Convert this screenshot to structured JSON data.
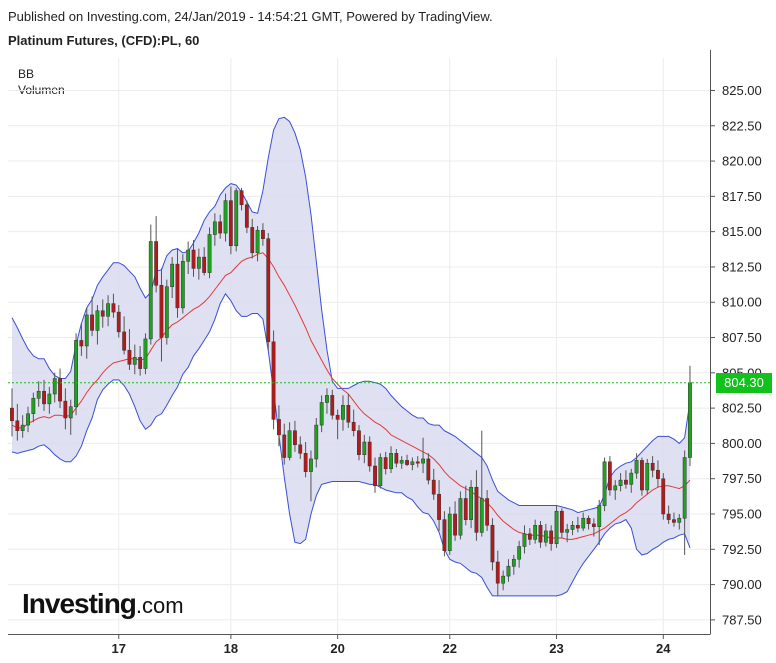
{
  "header": {
    "published": "Published on Investing.com, 24/Jan/2019 - 14:54:21 GMT, Powered by TradingView.",
    "symbol": "Platinum Futures, (CFD):PL, 60"
  },
  "indicators": [
    "BB",
    "Volumen"
  ],
  "logo": {
    "main": "Investing",
    "suffix": ".com"
  },
  "colors": {
    "up": "#1fa31f",
    "down": "#b31b1b",
    "band": "#3b4fd6",
    "band_fill": "#d9daf0",
    "basis": "#e23a3a",
    "last_line": "#15c215",
    "last_bg": "#10c21a"
  },
  "chart_data": {
    "type": "candlestick",
    "title": "Platinum Futures, (CFD):PL, 60",
    "ylim": [
      786.5,
      827.3
    ],
    "y_ticks": [
      787.5,
      790.0,
      792.5,
      795.0,
      797.5,
      800.0,
      802.5,
      805.0,
      807.5,
      810.0,
      812.5,
      815.0,
      817.5,
      820.0,
      822.5,
      825.0
    ],
    "y_tick_labels": [
      "787.50",
      "790.00",
      "792.50",
      "795.00",
      "797.50",
      "800.00",
      "802.50",
      "805.00",
      "807.50",
      "810.00",
      "812.50",
      "815.00",
      "817.50",
      "820.00",
      "822.50",
      "825.00"
    ],
    "x_ticks": [
      {
        "label": "17",
        "pos": 20
      },
      {
        "label": "18",
        "pos": 41
      },
      {
        "label": "20",
        "pos": 61
      },
      {
        "label": "22",
        "pos": 82
      },
      {
        "label": "23",
        "pos": 102
      },
      {
        "label": "24",
        "pos": 122
      }
    ],
    "last_price": 804.3,
    "last_price_label": "804.30",
    "candles": [
      [
        802.5,
        803.9,
        800.5,
        801.6
      ],
      [
        801.6,
        802.8,
        800.2,
        800.9
      ],
      [
        800.9,
        802.0,
        800.4,
        801.3
      ],
      [
        801.3,
        802.6,
        800.8,
        802.1
      ],
      [
        802.1,
        803.6,
        801.5,
        803.2
      ],
      [
        803.2,
        804.4,
        802.6,
        803.7
      ],
      [
        803.7,
        804.5,
        802.3,
        802.8
      ],
      [
        802.8,
        804.0,
        802.1,
        803.5
      ],
      [
        803.5,
        805.0,
        802.9,
        804.6
      ],
      [
        804.6,
        805.3,
        802.5,
        803.0
      ],
      [
        803.0,
        803.9,
        801.0,
        801.8
      ],
      [
        801.8,
        803.1,
        800.6,
        802.6
      ],
      [
        802.6,
        807.8,
        802.0,
        807.3
      ],
      [
        807.3,
        808.5,
        806.2,
        806.9
      ],
      [
        806.9,
        809.6,
        806.0,
        809.1
      ],
      [
        809.1,
        810.4,
        807.6,
        808.0
      ],
      [
        808.0,
        809.8,
        807.0,
        809.4
      ],
      [
        809.4,
        810.2,
        808.2,
        809.0
      ],
      [
        809.0,
        810.5,
        808.3,
        809.9
      ],
      [
        809.9,
        810.6,
        808.9,
        809.3
      ],
      [
        809.3,
        809.8,
        807.5,
        807.9
      ],
      [
        807.9,
        809.0,
        806.3,
        806.6
      ],
      [
        806.6,
        808.1,
        805.2,
        805.6
      ],
      [
        805.6,
        807.0,
        804.9,
        806.1
      ],
      [
        806.1,
        806.9,
        804.8,
        805.3
      ],
      [
        805.3,
        807.8,
        804.9,
        807.4
      ],
      [
        807.4,
        815.5,
        807.0,
        814.3
      ],
      [
        814.3,
        816.1,
        810.7,
        811.2
      ],
      [
        811.2,
        812.4,
        805.8,
        807.5
      ],
      [
        807.5,
        811.6,
        807.0,
        811.1
      ],
      [
        811.1,
        813.2,
        810.3,
        812.7
      ],
      [
        812.7,
        813.8,
        808.9,
        809.6
      ],
      [
        809.6,
        813.4,
        809.2,
        812.9
      ],
      [
        812.9,
        814.3,
        812.0,
        813.7
      ],
      [
        813.7,
        814.4,
        811.8,
        812.4
      ],
      [
        812.4,
        813.8,
        811.6,
        813.2
      ],
      [
        813.2,
        813.9,
        811.9,
        812.1
      ],
      [
        812.1,
        815.3,
        811.7,
        814.8
      ],
      [
        814.8,
        816.3,
        814.0,
        815.7
      ],
      [
        815.7,
        816.2,
        814.5,
        814.9
      ],
      [
        814.9,
        817.7,
        814.3,
        817.2
      ],
      [
        817.2,
        818.2,
        813.4,
        814.0
      ],
      [
        814.0,
        818.1,
        813.6,
        817.9
      ],
      [
        817.9,
        818.1,
        816.5,
        816.9
      ],
      [
        816.9,
        817.2,
        814.9,
        815.3
      ],
      [
        815.3,
        815.9,
        813.1,
        813.5
      ],
      [
        813.5,
        815.4,
        812.9,
        815.1
      ],
      [
        815.1,
        815.6,
        814.0,
        814.5
      ],
      [
        814.5,
        814.9,
        806.6,
        807.2
      ],
      [
        807.2,
        808.0,
        801.0,
        801.7
      ],
      [
        801.7,
        802.7,
        799.8,
        800.6
      ],
      [
        800.6,
        801.4,
        798.5,
        799.0
      ],
      [
        799.0,
        801.5,
        798.8,
        800.9
      ],
      [
        800.9,
        801.6,
        799.4,
        799.9
      ],
      [
        799.9,
        800.5,
        798.9,
        799.3
      ],
      [
        799.3,
        800.1,
        797.6,
        798.0
      ],
      [
        798.0,
        799.5,
        795.9,
        798.9
      ],
      [
        798.9,
        801.8,
        798.3,
        801.3
      ],
      [
        801.3,
        803.4,
        800.8,
        802.9
      ],
      [
        802.9,
        803.9,
        802.1,
        803.4
      ],
      [
        803.4,
        803.8,
        801.7,
        802.0
      ],
      [
        802.0,
        802.4,
        800.3,
        801.7
      ],
      [
        801.7,
        803.4,
        800.9,
        802.7
      ],
      [
        802.7,
        803.5,
        801.1,
        801.5
      ],
      [
        801.5,
        802.4,
        800.5,
        800.9
      ],
      [
        800.9,
        801.3,
        798.8,
        799.2
      ],
      [
        799.2,
        800.6,
        798.6,
        800.1
      ],
      [
        800.1,
        800.5,
        798.0,
        798.4
      ],
      [
        798.4,
        799.0,
        796.5,
        797.0
      ],
      [
        797.0,
        799.3,
        796.8,
        799.0
      ],
      [
        799.0,
        799.4,
        797.8,
        798.2
      ],
      [
        798.2,
        799.8,
        797.9,
        799.3
      ],
      [
        799.3,
        799.6,
        798.3,
        798.6
      ],
      [
        798.6,
        799.1,
        798.2,
        798.8
      ],
      [
        798.8,
        799.2,
        798.4,
        798.5
      ],
      [
        798.5,
        799.0,
        798.1,
        798.7
      ],
      [
        798.7,
        799.1,
        798.3,
        798.6
      ],
      [
        798.6,
        800.4,
        797.9,
        798.9
      ],
      [
        798.9,
        799.3,
        797.1,
        797.4
      ],
      [
        797.4,
        798.2,
        796.0,
        796.4
      ],
      [
        796.4,
        797.4,
        793.8,
        794.6
      ],
      [
        794.6,
        795.2,
        792.0,
        792.4
      ],
      [
        792.4,
        795.5,
        792.1,
        795.0
      ],
      [
        795.0,
        795.9,
        793.1,
        793.5
      ],
      [
        793.5,
        796.6,
        793.2,
        796.1
      ],
      [
        796.1,
        797.0,
        794.2,
        794.6
      ],
      [
        794.6,
        797.4,
        794.0,
        796.9
      ],
      [
        796.9,
        798.1,
        793.1,
        793.7
      ],
      [
        793.7,
        800.9,
        793.4,
        796.1
      ],
      [
        796.1,
        796.7,
        793.8,
        794.2
      ],
      [
        794.2,
        794.7,
        791.0,
        791.6
      ],
      [
        791.6,
        792.4,
        789.2,
        790.1
      ],
      [
        790.1,
        791.0,
        789.6,
        790.6
      ],
      [
        790.6,
        791.8,
        790.2,
        791.3
      ],
      [
        791.3,
        792.1,
        790.7,
        791.8
      ],
      [
        791.8,
        793.1,
        791.2,
        792.7
      ],
      [
        792.7,
        794.2,
        792.2,
        793.6
      ],
      [
        793.6,
        794.0,
        792.8,
        793.2
      ],
      [
        793.2,
        794.6,
        792.9,
        794.2
      ],
      [
        794.2,
        794.5,
        792.6,
        793.0
      ],
      [
        793.0,
        794.3,
        792.7,
        793.8
      ],
      [
        793.8,
        794.2,
        792.4,
        792.9
      ],
      [
        792.9,
        795.6,
        792.6,
        795.2
      ],
      [
        795.2,
        795.4,
        793.3,
        793.7
      ],
      [
        793.7,
        794.3,
        793.0,
        793.9
      ],
      [
        793.9,
        794.5,
        793.5,
        794.2
      ],
      [
        794.2,
        794.8,
        793.7,
        794.0
      ],
      [
        794.0,
        795.1,
        793.8,
        794.7
      ],
      [
        794.7,
        794.9,
        793.9,
        794.3
      ],
      [
        794.3,
        794.7,
        793.4,
        794.1
      ],
      [
        794.1,
        796.0,
        792.8,
        795.6
      ],
      [
        795.6,
        799.0,
        795.2,
        798.7
      ],
      [
        798.7,
        799.1,
        796.3,
        796.7
      ],
      [
        796.7,
        797.4,
        796.0,
        797.0
      ],
      [
        797.0,
        797.9,
        796.6,
        797.4
      ],
      [
        797.4,
        798.1,
        796.8,
        797.1
      ],
      [
        797.1,
        798.2,
        796.5,
        797.9
      ],
      [
        797.9,
        799.3,
        797.5,
        798.8
      ],
      [
        798.8,
        799.0,
        796.3,
        796.7
      ],
      [
        796.7,
        798.9,
        796.4,
        798.6
      ],
      [
        798.6,
        799.1,
        797.6,
        798.1
      ],
      [
        798.1,
        798.8,
        796.9,
        797.5
      ],
      [
        797.5,
        797.9,
        794.6,
        795.0
      ],
      [
        795.0,
        795.6,
        794.3,
        794.6
      ],
      [
        794.6,
        795.1,
        794.1,
        794.4
      ],
      [
        794.4,
        795.0,
        793.9,
        794.7
      ],
      [
        794.7,
        799.5,
        792.1,
        799.0
      ],
      [
        799.0,
        805.5,
        798.4,
        804.3
      ]
    ],
    "bollinger": {
      "upper": [
        808.9,
        808.2,
        807.4,
        806.7,
        806.2,
        806.0,
        806.0,
        805.3,
        804.8,
        804.6,
        804.6,
        805.1,
        807.0,
        808.5,
        809.6,
        810.2,
        811.2,
        811.8,
        812.3,
        812.8,
        812.8,
        812.6,
        812.2,
        811.8,
        811.0,
        810.3,
        810.7,
        812.2,
        812.3,
        813.3,
        813.7,
        813.8,
        813.5,
        813.6,
        814.2,
        814.9,
        815.8,
        816.4,
        816.8,
        817.6,
        818.1,
        818.4,
        818.3,
        817.8,
        817.1,
        816.4,
        816.3,
        817.9,
        820.2,
        822.2,
        823.0,
        823.1,
        822.8,
        822.0,
        820.8,
        818.9,
        816.2,
        812.9,
        809.5,
        806.6,
        804.4,
        803.9,
        803.9,
        803.9,
        804.1,
        804.3,
        804.4,
        804.4,
        804.3,
        804.2,
        803.9,
        803.4,
        803.0,
        802.6,
        802.3,
        802.0,
        801.8,
        801.8,
        801.4,
        801.3,
        801.3,
        800.9,
        800.7,
        800.5,
        800.2,
        799.9,
        799.6,
        799.3,
        799.0,
        798.4,
        797.4,
        796.6,
        796.3,
        796.0,
        795.8,
        795.6,
        795.6,
        795.6,
        795.6,
        795.6,
        795.6,
        795.6,
        795.6,
        795.5,
        795.4,
        795.3,
        795.1,
        795.2,
        795.3,
        795.4,
        795.5,
        796.4,
        797.6,
        798.1,
        798.4,
        798.6,
        798.7,
        799.0,
        799.4,
        799.8,
        800.2,
        800.5,
        800.5,
        800.5,
        800.3,
        800.0,
        800.4,
        803.0
      ],
      "basis": [
        801.3,
        801.1,
        801.1,
        801.4,
        801.6,
        801.8,
        801.9,
        801.8,
        802.0,
        802.0,
        801.9,
        802.0,
        802.5,
        803.0,
        803.6,
        804.1,
        804.5,
        805.0,
        805.4,
        805.7,
        805.8,
        805.9,
        806.0,
        806.0,
        805.9,
        806.0,
        806.6,
        807.2,
        807.5,
        808.0,
        808.4,
        808.6,
        808.9,
        809.2,
        809.5,
        809.7,
        810.0,
        810.4,
        810.9,
        811.4,
        811.9,
        812.1,
        812.5,
        812.9,
        813.1,
        813.2,
        813.4,
        813.5,
        813.1,
        812.5,
        811.8,
        811.2,
        810.5,
        809.8,
        809.0,
        808.2,
        807.3,
        806.6,
        805.9,
        805.2,
        804.6,
        804.2,
        803.8,
        803.5,
        803.0,
        802.5,
        802.1,
        801.8,
        801.5,
        801.3,
        801.0,
        800.6,
        800.4,
        800.2,
        800.0,
        799.8,
        799.6,
        799.4,
        799.2,
        798.9,
        798.5,
        798.0,
        797.6,
        797.3,
        797.0,
        796.8,
        796.6,
        796.3,
        796.1,
        795.8,
        795.4,
        794.9,
        794.5,
        794.2,
        793.9,
        793.7,
        793.6,
        793.5,
        793.5,
        793.5,
        793.4,
        793.3,
        793.3,
        793.3,
        793.2,
        793.2,
        793.3,
        793.4,
        793.5,
        793.6,
        793.8,
        794.0,
        794.3,
        794.6,
        794.9,
        795.1,
        795.4,
        795.8,
        796.1,
        796.4,
        796.7,
        796.9,
        797.0,
        797.0,
        796.9,
        796.8,
        797.0,
        797.4
      ],
      "lower": [
        799.4,
        799.3,
        799.4,
        799.5,
        799.6,
        799.8,
        799.9,
        799.6,
        799.2,
        798.9,
        798.7,
        798.7,
        799.1,
        799.8,
        800.9,
        801.8,
        803.1,
        803.8,
        804.2,
        804.5,
        804.5,
        804.1,
        803.5,
        802.6,
        801.6,
        801.0,
        801.3,
        801.9,
        802.1,
        802.7,
        803.4,
        804.0,
        804.9,
        805.4,
        806.2,
        806.7,
        807.3,
        807.9,
        808.8,
        809.9,
        810.6,
        810.1,
        809.4,
        809.0,
        809.0,
        809.2,
        809.2,
        808.8,
        806.6,
        803.7,
        800.6,
        797.6,
        795.0,
        793.0,
        792.9,
        793.2,
        795.0,
        796.3,
        797.1,
        797.2,
        797.3,
        797.3,
        797.3,
        797.3,
        797.3,
        797.3,
        797.2,
        797.1,
        797.1,
        796.9,
        796.7,
        796.6,
        796.5,
        796.5,
        796.2,
        796.0,
        795.5,
        795.1,
        795.0,
        794.5,
        793.7,
        792.5,
        791.8,
        791.6,
        791.5,
        791.2,
        790.9,
        790.8,
        790.5,
        789.8,
        789.2,
        789.2,
        789.2,
        789.2,
        789.2,
        789.2,
        789.2,
        789.2,
        789.2,
        789.2,
        789.2,
        789.2,
        789.2,
        789.3,
        789.5,
        790.2,
        790.9,
        791.5,
        792.0,
        792.5,
        793.0,
        793.6,
        794.0,
        794.3,
        794.4,
        794.6,
        794.0,
        792.5,
        792.1,
        792.2,
        792.5,
        792.7,
        793.0,
        793.2,
        793.3,
        793.5,
        793.6,
        792.6
      ]
    }
  }
}
